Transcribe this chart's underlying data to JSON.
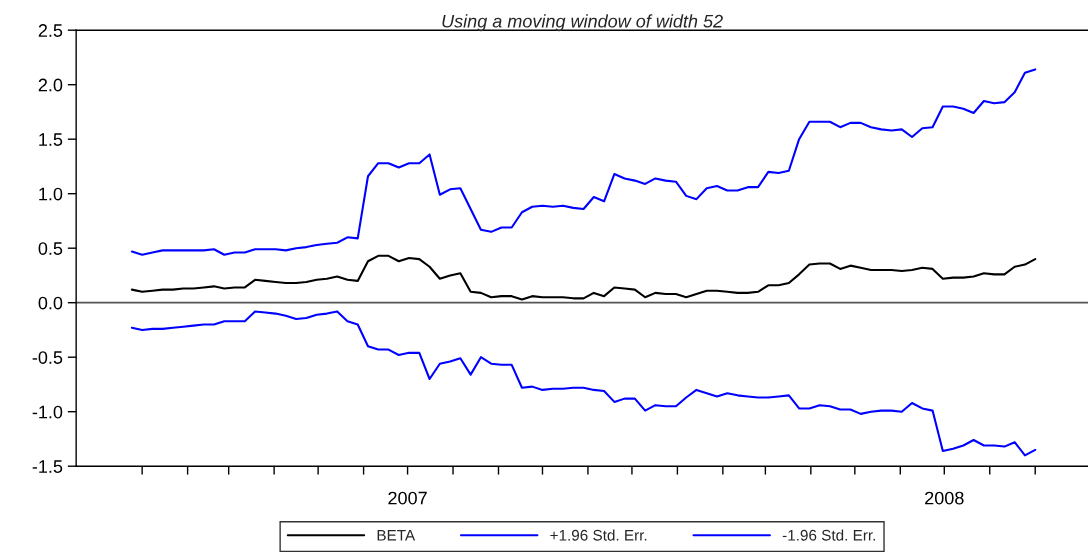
{
  "chart_data": {
    "type": "line",
    "title": "Using a moving window of width 52",
    "x": [
      "2006-12-25",
      "2007-01-01",
      "2007-01-08",
      "2007-01-15",
      "2007-01-22",
      "2007-01-29",
      "2007-02-05",
      "2007-02-12",
      "2007-02-19",
      "2007-02-26",
      "2007-03-05",
      "2007-03-12",
      "2007-03-19",
      "2007-03-26",
      "2007-04-02",
      "2007-04-09",
      "2007-04-16",
      "2007-04-23",
      "2007-04-30",
      "2007-05-07",
      "2007-05-14",
      "2007-05-21",
      "2007-05-28",
      "2007-06-04",
      "2007-06-11",
      "2007-06-18",
      "2007-06-25",
      "2007-07-02",
      "2007-07-09",
      "2007-07-16",
      "2007-07-23",
      "2007-07-30",
      "2007-08-06",
      "2007-08-13",
      "2007-08-20",
      "2007-08-27",
      "2007-09-03",
      "2007-09-10",
      "2007-09-17",
      "2007-09-24",
      "2007-10-01",
      "2007-10-08",
      "2007-10-15",
      "2007-10-22",
      "2007-10-29",
      "2007-11-05",
      "2007-11-12",
      "2007-11-19",
      "2007-11-26",
      "2007-12-03",
      "2007-12-10",
      "2007-12-17",
      "2007-12-24",
      "2007-12-31",
      "2008-01-07",
      "2008-01-14",
      "2008-01-21",
      "2008-01-28",
      "2008-02-04",
      "2008-02-11",
      "2008-02-18",
      "2008-02-25",
      "2008-03-03",
      "2008-03-10",
      "2008-03-17",
      "2008-03-24",
      "2008-03-31",
      "2008-04-07",
      "2008-04-14",
      "2008-04-21",
      "2008-04-28",
      "2008-05-05",
      "2008-05-12",
      "2008-05-19",
      "2008-05-26",
      "2008-06-02",
      "2008-06-09",
      "2008-06-16",
      "2008-06-23",
      "2008-06-30",
      "2008-07-07",
      "2008-07-14",
      "2008-07-21",
      "2008-07-28",
      "2008-08-04",
      "2008-08-11",
      "2008-08-18",
      "2008-08-25",
      "2008-09-01"
    ],
    "series": [
      {
        "name": "BETA",
        "color": "#000000",
        "values": [
          0.12,
          0.1,
          0.11,
          0.12,
          0.12,
          0.13,
          0.13,
          0.14,
          0.15,
          0.13,
          0.14,
          0.14,
          0.21,
          0.2,
          0.19,
          0.18,
          0.18,
          0.19,
          0.21,
          0.22,
          0.24,
          0.21,
          0.2,
          0.38,
          0.43,
          0.43,
          0.38,
          0.41,
          0.4,
          0.33,
          0.22,
          0.25,
          0.27,
          0.1,
          0.09,
          0.05,
          0.06,
          0.06,
          0.03,
          0.06,
          0.05,
          0.05,
          0.05,
          0.04,
          0.04,
          0.09,
          0.06,
          0.14,
          0.13,
          0.12,
          0.05,
          0.09,
          0.08,
          0.08,
          0.05,
          0.08,
          0.11,
          0.11,
          0.1,
          0.09,
          0.09,
          0.1,
          0.16,
          0.16,
          0.18,
          0.26,
          0.35,
          0.36,
          0.36,
          0.31,
          0.34,
          0.32,
          0.3,
          0.3,
          0.3,
          0.29,
          0.3,
          0.32,
          0.31,
          0.22,
          0.23,
          0.23,
          0.24,
          0.27,
          0.26,
          0.26,
          0.33,
          0.35,
          0.4
        ]
      },
      {
        "name": "+1.96 Std. Err.",
        "color": "#0000ff",
        "values": [
          0.47,
          0.44,
          0.46,
          0.48,
          0.48,
          0.48,
          0.48,
          0.48,
          0.49,
          0.44,
          0.46,
          0.46,
          0.49,
          0.49,
          0.49,
          0.48,
          0.5,
          0.51,
          0.53,
          0.54,
          0.55,
          0.6,
          0.59,
          1.16,
          1.28,
          1.28,
          1.24,
          1.28,
          1.28,
          1.36,
          0.99,
          1.04,
          1.05,
          0.86,
          0.67,
          0.65,
          0.69,
          0.69,
          0.83,
          0.88,
          0.89,
          0.88,
          0.89,
          0.87,
          0.86,
          0.97,
          0.93,
          1.18,
          1.14,
          1.12,
          1.09,
          1.14,
          1.12,
          1.11,
          0.98,
          0.95,
          1.05,
          1.07,
          1.03,
          1.03,
          1.06,
          1.06,
          1.2,
          1.19,
          1.21,
          1.5,
          1.66,
          1.66,
          1.66,
          1.61,
          1.65,
          1.65,
          1.61,
          1.59,
          1.58,
          1.59,
          1.52,
          1.6,
          1.61,
          1.8,
          1.8,
          1.78,
          1.74,
          1.85,
          1.83,
          1.84,
          1.93,
          2.11,
          2.14
        ]
      },
      {
        "name": "-1.96 Std. Err.",
        "color": "#0000ff",
        "values": [
          -0.23,
          -0.25,
          -0.24,
          -0.24,
          -0.23,
          -0.22,
          -0.21,
          -0.2,
          -0.2,
          -0.17,
          -0.17,
          -0.17,
          -0.08,
          -0.09,
          -0.1,
          -0.12,
          -0.15,
          -0.14,
          -0.11,
          -0.1,
          -0.08,
          -0.17,
          -0.2,
          -0.4,
          -0.43,
          -0.43,
          -0.48,
          -0.46,
          -0.46,
          -0.7,
          -0.56,
          -0.54,
          -0.51,
          -0.66,
          -0.5,
          -0.56,
          -0.57,
          -0.57,
          -0.78,
          -0.77,
          -0.8,
          -0.79,
          -0.79,
          -0.78,
          -0.78,
          -0.8,
          -0.81,
          -0.91,
          -0.88,
          -0.88,
          -0.99,
          -0.94,
          -0.95,
          -0.95,
          -0.87,
          -0.8,
          -0.83,
          -0.86,
          -0.83,
          -0.85,
          -0.86,
          -0.87,
          -0.87,
          -0.86,
          -0.85,
          -0.97,
          -0.97,
          -0.94,
          -0.95,
          -0.98,
          -0.98,
          -1.02,
          -1.0,
          -0.99,
          -0.99,
          -1.0,
          -0.92,
          -0.97,
          -0.99,
          -1.36,
          -1.34,
          -1.31,
          -1.26,
          -1.31,
          -1.31,
          -1.32,
          -1.28,
          -1.4,
          -1.35
        ]
      }
    ],
    "xlim": [
      "2006-11-17",
      "2008-10-07"
    ],
    "xticks": [
      {
        "value": "2007-01-01",
        "label": null
      },
      {
        "value": "2007-02-01",
        "label": null
      },
      {
        "value": "2007-03-01",
        "label": null
      },
      {
        "value": "2007-04-01",
        "label": null
      },
      {
        "value": "2007-05-01",
        "label": null
      },
      {
        "value": "2007-06-01",
        "label": null
      },
      {
        "value": "2007-07-01",
        "label": "2007"
      },
      {
        "value": "2007-08-01",
        "label": null
      },
      {
        "value": "2007-09-01",
        "label": null
      },
      {
        "value": "2007-10-01",
        "label": null
      },
      {
        "value": "2007-11-01",
        "label": null
      },
      {
        "value": "2007-12-01",
        "label": null
      },
      {
        "value": "2008-01-01",
        "label": null
      },
      {
        "value": "2008-02-01",
        "label": null
      },
      {
        "value": "2008-03-01",
        "label": null
      },
      {
        "value": "2008-04-01",
        "label": null
      },
      {
        "value": "2008-05-01",
        "label": null
      },
      {
        "value": "2008-06-01",
        "label": null
      },
      {
        "value": "2008-07-01",
        "label": "2008"
      },
      {
        "value": "2008-08-01",
        "label": null
      },
      {
        "value": "2008-09-01",
        "label": null
      }
    ],
    "ylim": [
      -1.5,
      2.5
    ],
    "yticks": [
      {
        "value": -1.5,
        "label": "-1.5"
      },
      {
        "value": -1.0,
        "label": "-1.0"
      },
      {
        "value": -0.5,
        "label": "-0.5"
      },
      {
        "value": 0.0,
        "label": "0.0"
      },
      {
        "value": 0.5,
        "label": "0.5"
      },
      {
        "value": 1.0,
        "label": "1.0"
      },
      {
        "value": 1.5,
        "label": "1.5"
      },
      {
        "value": 2.0,
        "label": "2.0"
      },
      {
        "value": 2.5,
        "label": "2.5"
      }
    ],
    "ref_lines": [
      {
        "axis": "y",
        "value": 0,
        "color": "#555555"
      }
    ],
    "grid": false,
    "legend": "bottom",
    "marker": "none",
    "line_style": "solid"
  }
}
